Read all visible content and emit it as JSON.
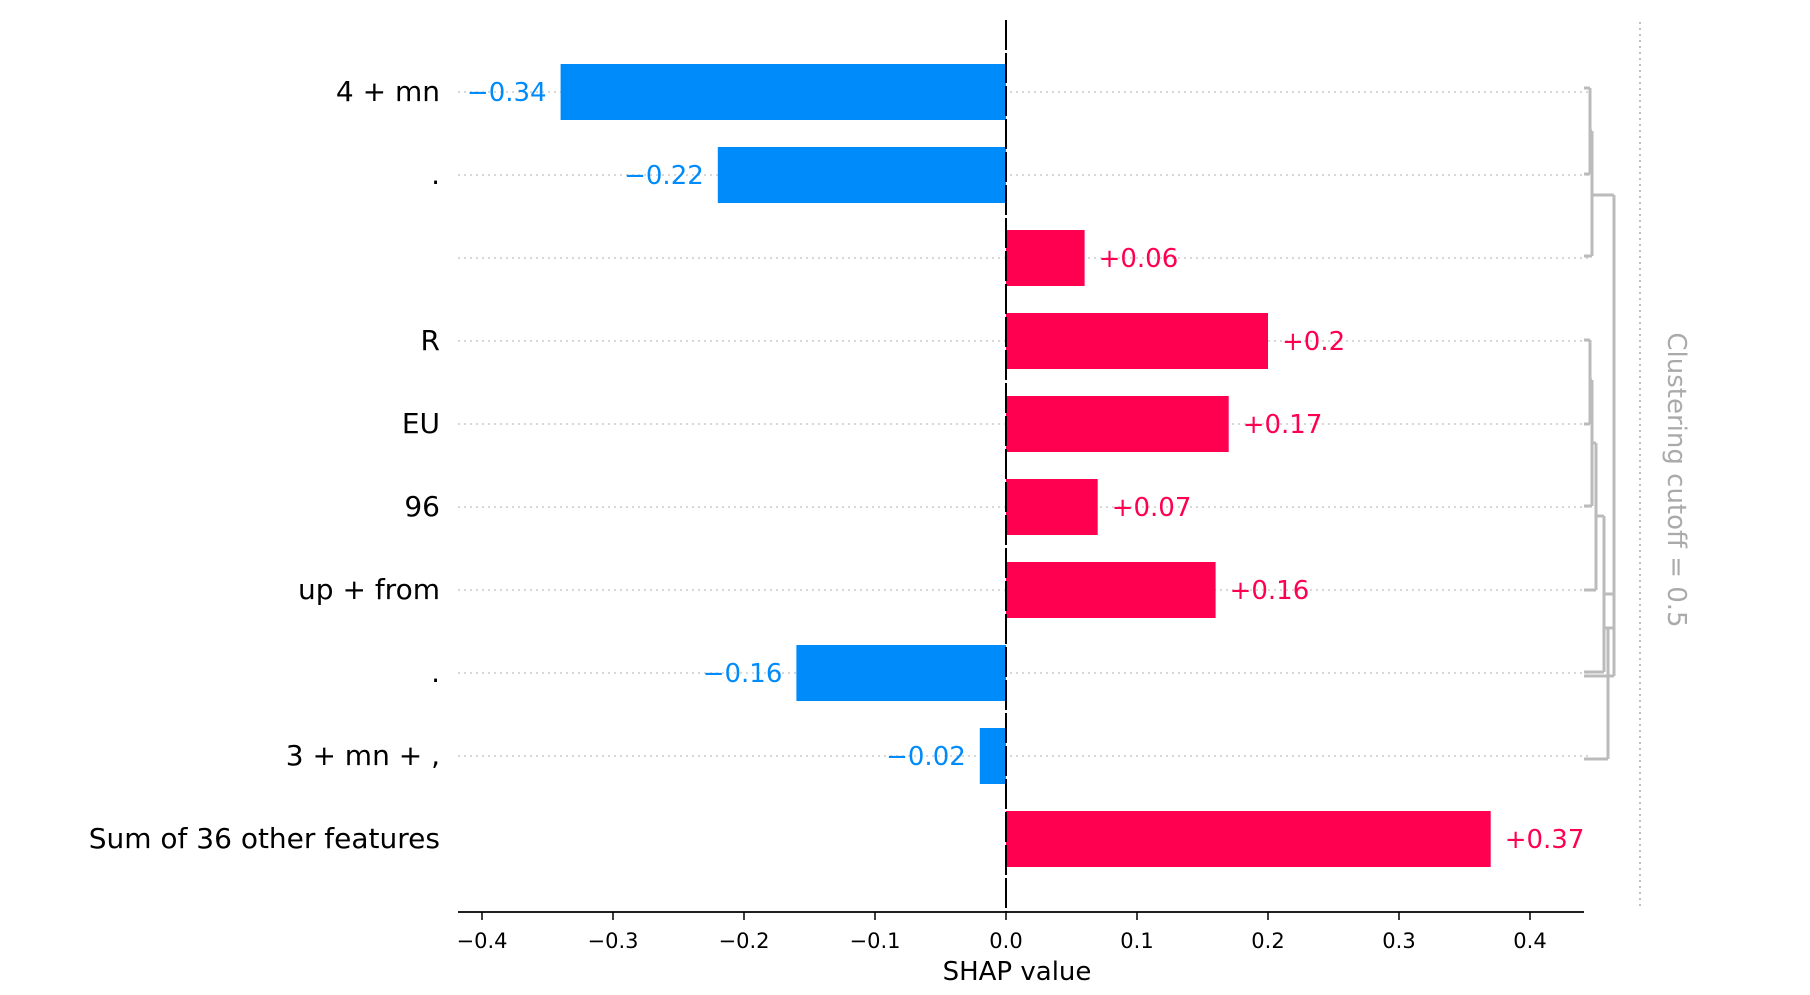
{
  "chart_data": {
    "type": "bar",
    "orientation": "horizontal",
    "categories": [
      "4 + mn",
      ".",
      "",
      "R",
      "EU",
      "96",
      "up + from",
      ".",
      "3 + mn + ,",
      "Sum of 36 other features"
    ],
    "values": [
      -0.34,
      -0.22,
      0.06,
      0.2,
      0.17,
      0.07,
      0.16,
      -0.16,
      -0.02,
      0.37
    ],
    "value_labels": [
      "−0.34",
      "−0.22",
      "+0.06",
      "+0.2",
      "+0.17",
      "+0.07",
      "+0.16",
      "−0.16",
      "−0.02",
      "+0.37"
    ],
    "xlabel": "SHAP value",
    "xlim": [
      -0.42,
      0.44
    ],
    "xticks": [
      -0.4,
      -0.3,
      -0.2,
      -0.1,
      0.0,
      0.1,
      0.2,
      0.3,
      0.4
    ],
    "xtick_labels": [
      "−0.4",
      "−0.3",
      "−0.2",
      "−0.1",
      "0.0",
      "0.1",
      "0.2",
      "0.3",
      "0.4"
    ],
    "grid": "dotted horizontal",
    "colors": {
      "positive": "#ff0051",
      "negative": "#008bfb",
      "dendrogram": "#bbbbbb",
      "cutoff": "#aaaaaa"
    },
    "dendrogram": {
      "cutoff_label": "Clustering cutoff = 0.5",
      "cutoff_value": 0.5
    }
  }
}
